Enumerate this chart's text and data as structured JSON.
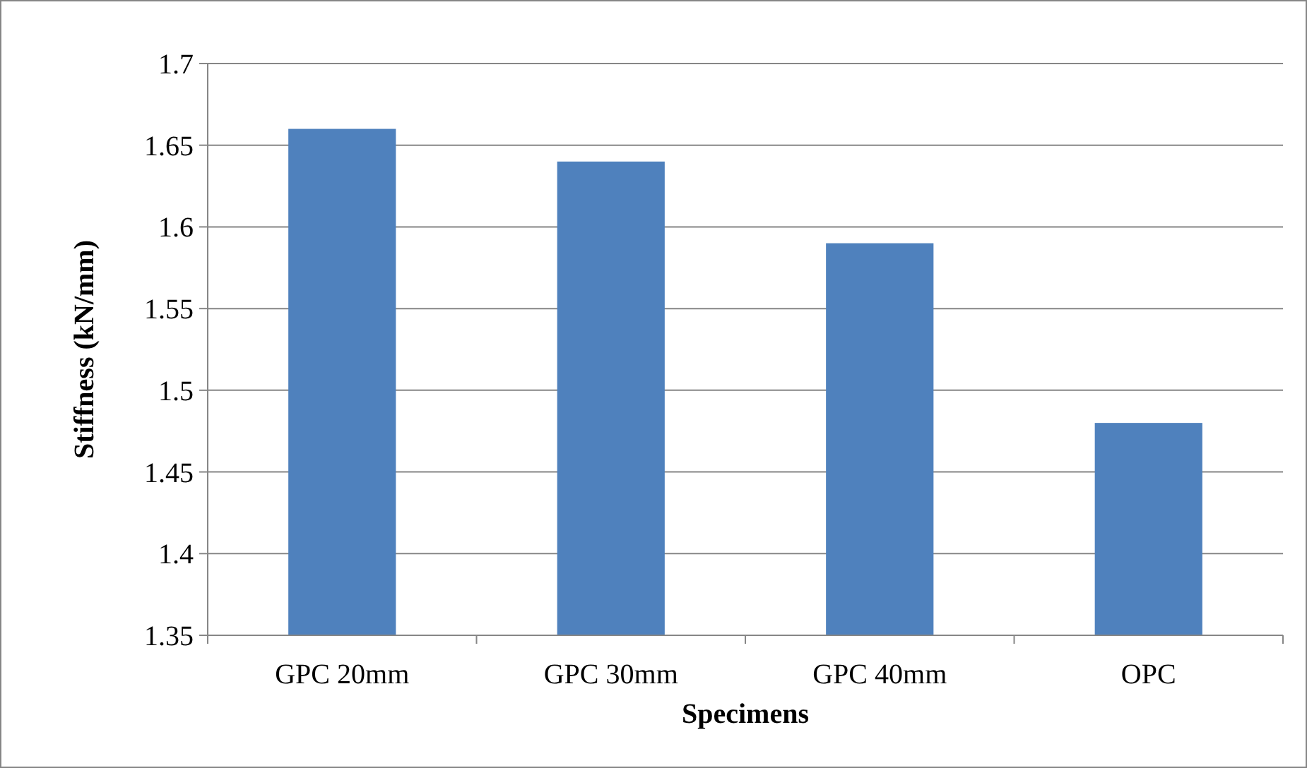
{
  "chart_data": {
    "type": "bar",
    "xlabel": "Specimens",
    "ylabel": "Stiffness (kN/mm)",
    "categories": [
      "GPC 20mm",
      "GPC 30mm",
      "GPC 40mm",
      "OPC"
    ],
    "values": [
      1.66,
      1.64,
      1.59,
      1.48
    ],
    "color": "#4f81bd",
    "ylim": [
      1.35,
      1.7
    ],
    "yticks": [
      1.35,
      1.4,
      1.45,
      1.5,
      1.55,
      1.6,
      1.65,
      1.7
    ],
    "grid": "y"
  }
}
